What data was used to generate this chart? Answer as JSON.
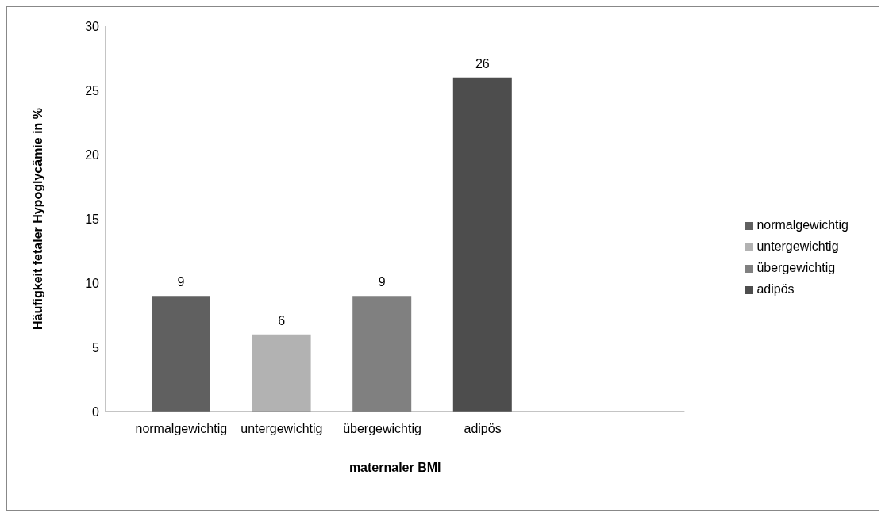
{
  "chart_data": {
    "type": "bar",
    "xlabel": "maternaler BMI",
    "ylabel": "Häufigkeit fetaler Hypoglycämie  in %",
    "categories": [
      "normalgewichtig",
      "untergewichtig",
      "übergewichtig",
      "adipös"
    ],
    "series": [
      {
        "name": "normalgewichtig",
        "color": "#606060",
        "values": [
          9,
          null,
          null,
          null
        ]
      },
      {
        "name": "untergewichtig",
        "color": "#b2b2b2",
        "values": [
          null,
          6,
          null,
          null
        ]
      },
      {
        "name": "übergewichtig",
        "color": "#808080",
        "values": [
          null,
          null,
          9,
          null
        ]
      },
      {
        "name": "adipös",
        "color": "#4d4d4d",
        "values": [
          null,
          null,
          null,
          26
        ]
      }
    ],
    "ylim": [
      0,
      30
    ],
    "yticks": [
      0,
      5,
      10,
      15,
      20,
      25,
      30
    ],
    "legend": "right",
    "data_labels": true
  }
}
